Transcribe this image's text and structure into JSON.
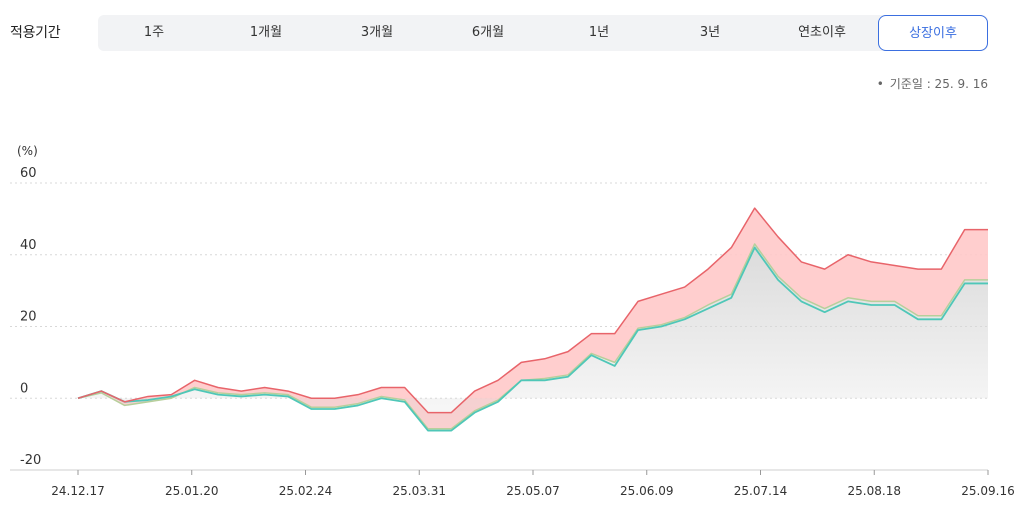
{
  "header": {
    "period_label": "적용기간",
    "periods": [
      "1주",
      "1개월",
      "3개월",
      "6개월",
      "1년",
      "3년",
      "연초이후",
      "상장이후"
    ],
    "active_period": "상장이후",
    "basis_bullet": "•",
    "basis_date": "기준일 : 25. 9. 16"
  },
  "colors": {
    "series_red": "#e8646a",
    "series_teal": "#4fc7b8",
    "series_olive": "#b7cf9b",
    "fill_red": "#ffc9c9",
    "fill_gray": "#d9d9d9",
    "active_accent": "#3b6fe0",
    "grid": "#d8d8d8"
  },
  "chart_data": {
    "type": "area",
    "yunit": "(%)",
    "ylim": [
      -20,
      60
    ],
    "yticks": [
      60,
      40,
      20,
      0,
      -20
    ],
    "xticks": [
      "24.12.17",
      "25.01.20",
      "25.02.24",
      "25.03.31",
      "25.05.07",
      "25.06.09",
      "25.07.14",
      "25.08.18",
      "25.09.16"
    ],
    "grid": true,
    "series": [
      {
        "color": "#e8646a",
        "values": [
          0,
          2,
          -1,
          0.5,
          1,
          5,
          3,
          2,
          3,
          2,
          0,
          0,
          1,
          3,
          3,
          -4,
          -4,
          2,
          5,
          10,
          11,
          13,
          18,
          18,
          27,
          29,
          31,
          36,
          42,
          53,
          45,
          38,
          36,
          40,
          38,
          37,
          36,
          36,
          47,
          47
        ]
      },
      {
        "color": "#4fc7b8",
        "values": [
          0,
          2,
          -1,
          -0.5,
          0.5,
          2.5,
          1,
          0.5,
          1,
          0.5,
          -3,
          -3,
          -2,
          0,
          -1,
          -9,
          -9,
          -4,
          -1,
          5,
          5,
          6,
          12,
          9,
          19,
          20,
          22,
          25,
          28,
          42,
          33,
          27,
          24,
          27,
          26,
          26,
          22,
          22,
          32,
          32
        ]
      },
      {
        "color": "#b7cf9b",
        "values": [
          0,
          1.5,
          -2,
          -1,
          0,
          3,
          1.5,
          1,
          1.5,
          1,
          -2.5,
          -2.5,
          -1.5,
          0.5,
          -0.5,
          -8.5,
          -8.5,
          -3.5,
          -0.5,
          5,
          5.5,
          6.5,
          12.5,
          10,
          19.5,
          20.5,
          22.5,
          26,
          29,
          43,
          34,
          28,
          25,
          28,
          27,
          27,
          23,
          23,
          33,
          33
        ]
      }
    ]
  }
}
